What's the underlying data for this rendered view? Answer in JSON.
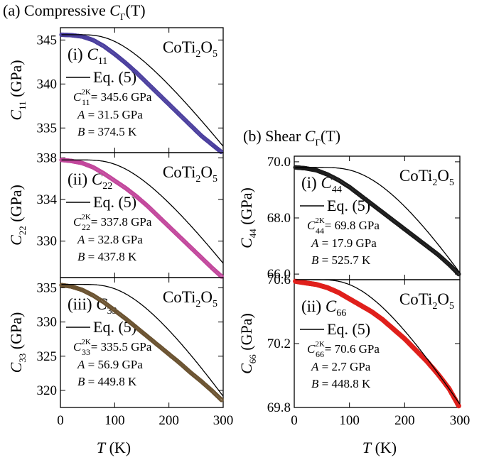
{
  "figure": {
    "group_a_title": "(a) Compressive",
    "group_b_title": "(b) Shear",
    "group_title_symbol": "C",
    "group_title_sub": "Γ",
    "group_title_tail": "(T)",
    "compound_main": "CoTi",
    "compound_sub1": "2",
    "compound_mid": "O",
    "compound_sub2": "5",
    "fit_legend": "Eq. (5)",
    "x_axis_symbol": "T",
    "x_axis_unit": "(K)"
  },
  "colors": {
    "c11": "#4b3f9e",
    "c22": "#c2479c",
    "c33": "#6b5331",
    "c44": "#1a1a1a",
    "c66": "#e0201c",
    "fit": "#000000"
  },
  "chart_data": [
    {
      "id": "c11",
      "type": "scatter",
      "panel_label": "(i)",
      "constant_symbol": "C",
      "constant_sub": "11",
      "ylabel_symbol": "C",
      "ylabel_sub": "11",
      "ylabel_unit": "(GPa)",
      "xlim": [
        0,
        300
      ],
      "ylim": [
        332.2,
        346.4
      ],
      "xticks": [
        0,
        100,
        200,
        300
      ],
      "yticks": [
        335,
        340,
        345
      ],
      "params": {
        "c_sym": "C",
        "c_sub": "11",
        "c_sup": "2K",
        "c_val": "= 345.6 GPa",
        "a_sym": "A",
        "a_val": "= 31.5 GPa",
        "b_sym": "B",
        "b_val": "= 374.5 K"
      },
      "fit": {
        "c0": 345.6,
        "A": 31.5,
        "B": 374.5
      },
      "series": [
        {
          "x": [
            2,
            20,
            40,
            60,
            80,
            100,
            120,
            140,
            160,
            180,
            200,
            220,
            240,
            260,
            280,
            296
          ],
          "y": [
            345.6,
            345.55,
            345.4,
            345.0,
            344.3,
            343.4,
            342.4,
            341.3,
            340.1,
            338.9,
            337.7,
            336.5,
            335.3,
            334.1,
            333.1,
            332.3
          ]
        }
      ]
    },
    {
      "id": "c22",
      "type": "scatter",
      "panel_label": "(ii)",
      "constant_symbol": "C",
      "constant_sub": "22",
      "ylabel_symbol": "C",
      "ylabel_sub": "22",
      "ylabel_unit": "(GPa)",
      "xlim": [
        0,
        300
      ],
      "ylim": [
        326.5,
        338.5
      ],
      "xticks": [
        0,
        100,
        200,
        300
      ],
      "yticks": [
        330,
        334,
        338
      ],
      "params": {
        "c_sym": "C",
        "c_sub": "22",
        "c_sup": "2K",
        "c_val": "= 337.8 GPa",
        "a_sym": "A",
        "a_val": "= 32.8 GPa",
        "b_sym": "B",
        "b_val": "= 437.8 K"
      },
      "fit": {
        "c0": 337.8,
        "A": 32.8,
        "B": 437.8
      },
      "series": [
        {
          "x": [
            2,
            20,
            40,
            60,
            80,
            100,
            120,
            140,
            160,
            180,
            200,
            220,
            240,
            260,
            280,
            297
          ],
          "y": [
            337.8,
            337.7,
            337.5,
            337.1,
            336.5,
            335.8,
            335.1,
            334.3,
            333.4,
            332.4,
            331.4,
            330.4,
            329.4,
            328.4,
            327.4,
            326.6
          ]
        }
      ]
    },
    {
      "id": "c33",
      "type": "scatter",
      "panel_label": "(iii)",
      "constant_symbol": "C",
      "constant_sub": "33",
      "ylabel_symbol": "C",
      "ylabel_sub": "33",
      "ylabel_unit": "(GPa)",
      "xlim": [
        0,
        300
      ],
      "ylim": [
        317.5,
        336.5
      ],
      "xticks": [
        0,
        100,
        200,
        300
      ],
      "yticks": [
        320,
        325,
        330,
        335
      ],
      "params": {
        "c_sym": "C",
        "c_sub": "33",
        "c_sup": "2K",
        "c_val": "= 335.5 GPa",
        "a_sym": "A",
        "a_val": "= 56.9 GPa",
        "b_sym": "B",
        "b_val": "= 449.8 K"
      },
      "fit": {
        "c0": 335.5,
        "A": 56.9,
        "B": 449.8
      },
      "series": [
        {
          "x": [
            2,
            20,
            40,
            60,
            80,
            100,
            120,
            140,
            160,
            180,
            200,
            220,
            240,
            260,
            280,
            297
          ],
          "y": [
            335.4,
            335.2,
            334.7,
            333.9,
            332.9,
            331.7,
            330.5,
            329.2,
            327.9,
            326.6,
            325.3,
            324.0,
            322.6,
            321.3,
            319.9,
            318.6
          ]
        }
      ]
    },
    {
      "id": "c44",
      "type": "scatter",
      "panel_label": "(i)",
      "constant_symbol": "C",
      "constant_sub": "44",
      "ylabel_symbol": "C",
      "ylabel_sub": "44",
      "ylabel_unit": "(GPa)",
      "xlim": [
        0,
        300
      ],
      "ylim": [
        65.8,
        70.2
      ],
      "xticks": [
        0,
        100,
        200,
        300
      ],
      "yticks": [
        66.0,
        68.0,
        70.0
      ],
      "params": {
        "c_sym": "C",
        "c_sub": "44",
        "c_sup": "2K",
        "c_val": "= 69.8 GPa",
        "a_sym": "A",
        "a_val": "= 17.9 GPa",
        "b_sym": "B",
        "b_val": "= 525.7 K"
      },
      "fit": {
        "c0": 69.8,
        "A": 17.9,
        "B": 525.7
      },
      "series": [
        {
          "x": [
            2,
            20,
            40,
            60,
            80,
            100,
            120,
            140,
            160,
            180,
            200,
            220,
            240,
            260,
            280,
            298
          ],
          "y": [
            69.8,
            69.77,
            69.7,
            69.55,
            69.35,
            69.1,
            68.8,
            68.5,
            68.2,
            67.9,
            67.6,
            67.3,
            67.0,
            66.7,
            66.35,
            66.0
          ]
        }
      ]
    },
    {
      "id": "c66",
      "type": "scatter",
      "panel_label": "(ii)",
      "constant_symbol": "C",
      "constant_sub": "66",
      "ylabel_symbol": "C",
      "ylabel_sub": "66",
      "ylabel_unit": "(GPa)",
      "xlim": [
        0,
        300
      ],
      "ylim": [
        69.8,
        70.6
      ],
      "xticks": [
        0,
        100,
        200,
        300
      ],
      "yticks": [
        69.8,
        70.2,
        70.6
      ],
      "params": {
        "c_sym": "C",
        "c_sub": "66",
        "c_sup": "2K",
        "c_val": "= 70.6 GPa",
        "a_sym": "A",
        "a_val": "= 2.7 GPa",
        "b_sym": "B",
        "b_val": "= 448.8 K"
      },
      "fit": {
        "c0": 70.6,
        "A": 2.7,
        "B": 448.8
      },
      "series": [
        {
          "x": [
            2,
            20,
            40,
            60,
            80,
            100,
            120,
            140,
            160,
            180,
            200,
            220,
            240,
            260,
            280,
            298
          ],
          "y": [
            70.59,
            70.58,
            70.57,
            70.55,
            70.52,
            70.48,
            70.44,
            70.4,
            70.35,
            70.29,
            70.23,
            70.16,
            70.09,
            70.01,
            69.92,
            69.81
          ]
        }
      ]
    }
  ]
}
